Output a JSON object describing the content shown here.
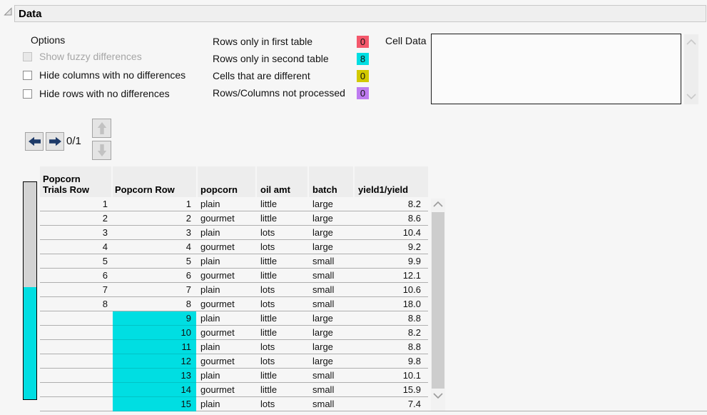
{
  "panel": {
    "title": "Data"
  },
  "options": {
    "label": "Options",
    "checkboxes": [
      {
        "label": "Show fuzzy differences",
        "disabled": true,
        "checked": false
      },
      {
        "label": "Hide columns with no differences",
        "disabled": false,
        "checked": false
      },
      {
        "label": "Hide rows with no differences",
        "disabled": false,
        "checked": false
      }
    ]
  },
  "legend": {
    "items": [
      {
        "label": "Rows only in first table",
        "value": "0",
        "color": "#F4586C"
      },
      {
        "label": "Rows only in second table",
        "value": "8",
        "color": "#00DEE2"
      },
      {
        "label": "Cells that are different",
        "value": "0",
        "color": "#D2C900"
      },
      {
        "label": "Rows/Columns not processed",
        "value": "0",
        "color": "#BE7BF0"
      }
    ]
  },
  "cell_data": {
    "label": "Cell Data",
    "content": ""
  },
  "navigation": {
    "counter": "0/1"
  },
  "row_state_bar": {
    "unchanged_color": "#D3D3D3",
    "added_color": "#00DEE2"
  },
  "table": {
    "columns": [
      {
        "label": "Popcorn Trials Row",
        "label_lines": [
          "Popcorn",
          "Trials Row"
        ]
      },
      {
        "label": "Popcorn Row"
      },
      {
        "label": "popcorn"
      },
      {
        "label": "oil amt"
      },
      {
        "label": "batch"
      },
      {
        "label": "yield1/yield"
      }
    ],
    "rows": [
      {
        "cells": [
          "1",
          "1",
          "plain",
          "little",
          "large",
          "8.2"
        ],
        "diff": false
      },
      {
        "cells": [
          "2",
          "2",
          "gourmet",
          "little",
          "large",
          "8.6"
        ],
        "diff": false
      },
      {
        "cells": [
          "3",
          "3",
          "plain",
          "lots",
          "large",
          "10.4"
        ],
        "diff": false
      },
      {
        "cells": [
          "4",
          "4",
          "gourmet",
          "lots",
          "large",
          "9.2"
        ],
        "diff": false
      },
      {
        "cells": [
          "5",
          "5",
          "plain",
          "little",
          "small",
          "9.9"
        ],
        "diff": false
      },
      {
        "cells": [
          "6",
          "6",
          "gourmet",
          "little",
          "small",
          "12.1"
        ],
        "diff": false
      },
      {
        "cells": [
          "7",
          "7",
          "plain",
          "lots",
          "small",
          "10.6"
        ],
        "diff": false
      },
      {
        "cells": [
          "8",
          "8",
          "gourmet",
          "lots",
          "small",
          "18.0"
        ],
        "diff": false
      },
      {
        "cells": [
          "",
          "9",
          "plain",
          "little",
          "large",
          "8.8"
        ],
        "diff": true
      },
      {
        "cells": [
          "",
          "10",
          "gourmet",
          "little",
          "large",
          "8.2"
        ],
        "diff": true
      },
      {
        "cells": [
          "",
          "11",
          "plain",
          "lots",
          "large",
          "8.8"
        ],
        "diff": true
      },
      {
        "cells": [
          "",
          "12",
          "gourmet",
          "lots",
          "large",
          "9.8"
        ],
        "diff": true
      },
      {
        "cells": [
          "",
          "13",
          "plain",
          "little",
          "small",
          "10.1"
        ],
        "diff": true
      },
      {
        "cells": [
          "",
          "14",
          "gourmet",
          "little",
          "small",
          "15.9"
        ],
        "diff": true
      },
      {
        "cells": [
          "",
          "15",
          "plain",
          "lots",
          "small",
          "7.4"
        ],
        "diff": true
      }
    ],
    "highlight_color": "#00DEE2"
  },
  "colors": {
    "nav_arrow": "#1D3A68",
    "disabled_arrow": "#C2C2C2"
  }
}
